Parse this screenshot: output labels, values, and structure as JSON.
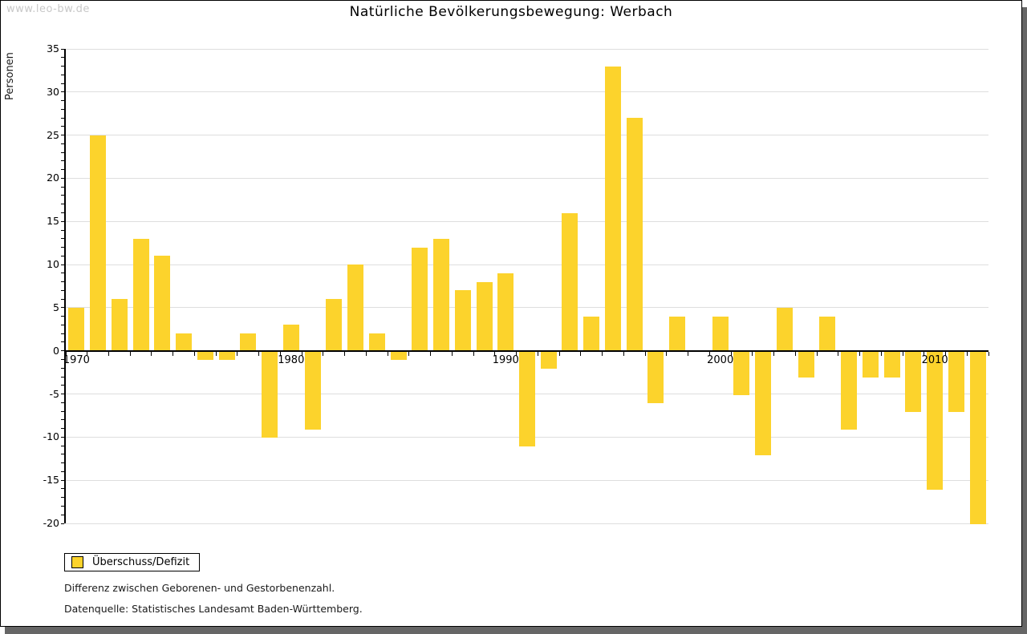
{
  "watermark": "www.leo-bw.de",
  "title": "Natürliche Bevölkerungsbewegung: Werbach",
  "legend": {
    "label": "Überschuss/Defizit"
  },
  "footnotes": {
    "line1": "Differenz zwischen Geborenen- und Gestorbenenzahl.",
    "line2": "Datenquelle: Statistisches Landesamt Baden-Württemberg."
  },
  "colors": {
    "bar": "#FCD32C",
    "grid": "#DEDEDE",
    "axis": "#000000",
    "watermark": "#C8C8C8",
    "frame_shadow": "#666666"
  },
  "chart_data": {
    "type": "bar",
    "title": "Natürliche Bevölkerungsbewegung: Werbach",
    "xlabel": "",
    "ylabel": "Personen",
    "series_name": "Überschuss/Defizit",
    "x": [
      1970,
      1971,
      1972,
      1973,
      1974,
      1975,
      1976,
      1977,
      1978,
      1979,
      1980,
      1981,
      1982,
      1983,
      1984,
      1985,
      1986,
      1987,
      1988,
      1989,
      1990,
      1991,
      1992,
      1993,
      1994,
      1995,
      1996,
      1997,
      1998,
      1999,
      2000,
      2001,
      2002,
      2003,
      2004,
      2005,
      2006,
      2007,
      2008,
      2009,
      2010,
      2011,
      2012
    ],
    "values": [
      5,
      25,
      6,
      13,
      11,
      2,
      -1,
      -1,
      2,
      -10,
      3,
      -9,
      6,
      10,
      2,
      -1,
      12,
      13,
      7,
      8,
      9,
      -11,
      -2,
      16,
      4,
      33,
      27,
      -6,
      4,
      0,
      4,
      -5,
      -12,
      5,
      -3,
      4,
      -9,
      -3,
      -3,
      -7,
      -16,
      -7,
      -20
    ],
    "ylim": [
      -20,
      35
    ],
    "ytick_step": 5,
    "ytick_minor_step": 1,
    "xtick_labels": [
      1970,
      1980,
      1990,
      2000,
      2010
    ],
    "grid": true,
    "legend_position": "bottom-left"
  }
}
